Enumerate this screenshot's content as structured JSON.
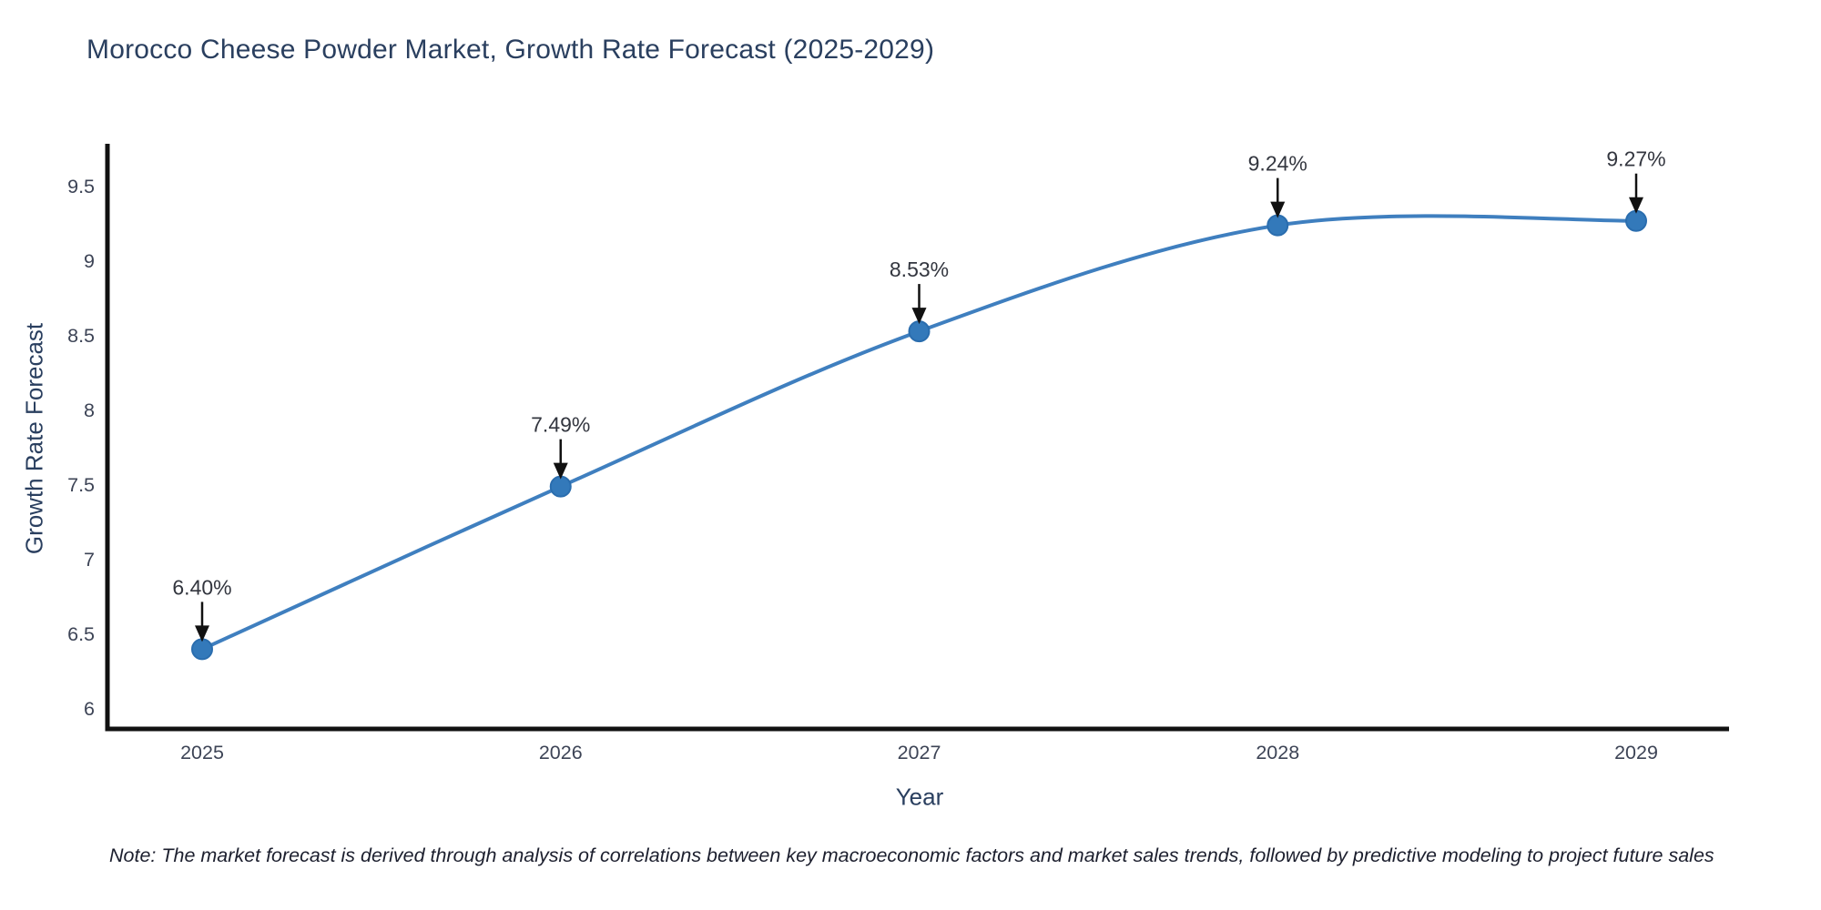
{
  "chart_data": {
    "type": "line",
    "title": "Morocco Cheese Powder Market, Growth Rate Forecast (2025-2029)",
    "xlabel": "Year",
    "ylabel": "Growth Rate Forecast",
    "x": [
      2025,
      2026,
      2027,
      2028,
      2029
    ],
    "values": [
      6.4,
      7.49,
      8.53,
      9.24,
      9.27
    ],
    "point_labels": [
      "6.40%",
      "7.49%",
      "8.53%",
      "9.24%",
      "9.27%"
    ],
    "x_tick_labels": [
      "2025",
      "2026",
      "2027",
      "2028",
      "2029"
    ],
    "y_ticks": [
      6,
      6.5,
      7,
      7.5,
      8,
      8.5,
      9,
      9.5
    ],
    "y_tick_labels": [
      "6",
      "6.5",
      "7",
      "7.5",
      "8",
      "8.5",
      "9",
      "9.5"
    ],
    "ylim_visible": [
      5.87,
      9.77
    ],
    "grid": false,
    "legend_position": "none",
    "colors": {
      "line": "#3f7fbf",
      "marker_fill": "#3379ba",
      "marker_stroke": "#2a6dae",
      "axis": "#111111",
      "tick_text": "#3d4456",
      "annotation_text": "#33363f",
      "arrow": "#111111"
    }
  },
  "footnote": "Note: The market forecast is derived through analysis of correlations between key macroeconomic factors and market sales trends, followed by predictive modeling to project future sales"
}
